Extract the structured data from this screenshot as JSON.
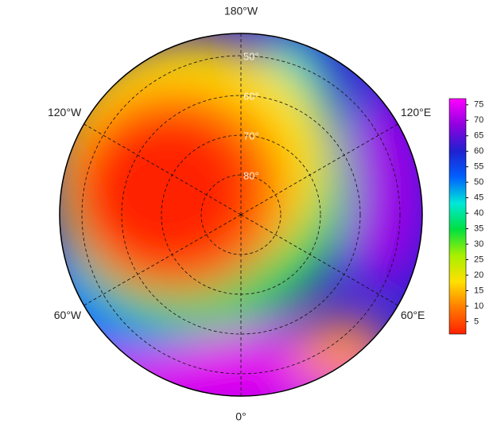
{
  "map": {
    "type": "polar-stereographic",
    "lat_lim": [
      44.4,
      90
    ],
    "latitudes": [
      {
        "value": 50,
        "label": "50°"
      },
      {
        "value": 60,
        "label": "60°"
      },
      {
        "value": 70,
        "label": "70°"
      },
      {
        "value": 80,
        "label": "80°"
      }
    ],
    "longitudes": [
      {
        "value": 180,
        "label": "180°W"
      },
      {
        "value": -120,
        "label": "120°W"
      },
      {
        "value": 120,
        "label": "120°E"
      },
      {
        "value": -60,
        "label": "60°W"
      },
      {
        "value": 60,
        "label": "60°E"
      },
      {
        "value": 0,
        "label": "0°"
      }
    ],
    "colorbar": {
      "lim": [
        1,
        77
      ],
      "ticks": [
        5,
        10,
        15,
        20,
        25,
        30,
        35,
        40,
        45,
        50,
        55,
        60,
        65,
        70,
        75
      ],
      "colors": [
        "#ff2000",
        "#ff7a00",
        "#ffe000",
        "#a8f000",
        "#00e040",
        "#00e8d8",
        "#0060ff",
        "#2020d0",
        "#9000e0",
        "#ff00ff"
      ]
    }
  }
}
